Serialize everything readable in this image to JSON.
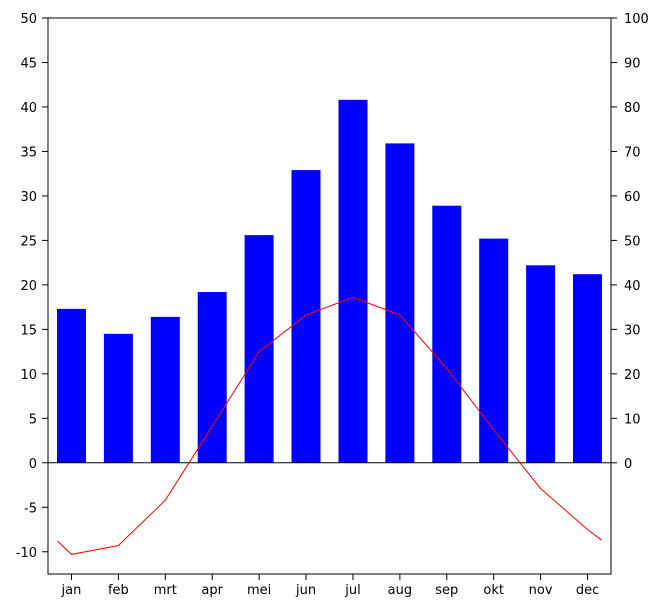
{
  "chart_data": {
    "type": "bar+line",
    "title": "",
    "categories": [
      "jan",
      "feb",
      "mrt",
      "apr",
      "mei",
      "jun",
      "jul",
      "aug",
      "sep",
      "okt",
      "nov",
      "dec"
    ],
    "series": [
      {
        "type": "bar",
        "axis": "right",
        "color": "#0000ff",
        "values": [
          34.6,
          29.0,
          32.8,
          38.4,
          51.2,
          65.8,
          81.6,
          71.8,
          57.8,
          50.4,
          44.4,
          42.4
        ]
      },
      {
        "type": "line",
        "axis": "left",
        "color": "#ff0000",
        "x": [
          -0.3,
          0,
          1,
          2,
          3,
          4,
          5,
          6,
          7,
          8,
          9,
          10,
          11,
          11.3
        ],
        "values": [
          -8.8,
          -10.3,
          -9.3,
          -4.2,
          4.1,
          12.5,
          16.6,
          18.6,
          16.6,
          10.6,
          3.7,
          -2.9,
          -7.5,
          -8.7
        ]
      }
    ],
    "left_axis": {
      "ylim": [
        -12.5,
        50
      ],
      "ticks": [
        "50",
        "45",
        "40",
        "35",
        "30",
        "25",
        "20",
        "15",
        "10",
        "5",
        "0",
        "-5",
        "-10"
      ]
    },
    "right_axis": {
      "ylim": [
        -25,
        100
      ],
      "ticks": [
        "100",
        "90",
        "80",
        "70",
        "60",
        "50",
        "40",
        "30",
        "20",
        "10",
        "0"
      ]
    },
    "xlabel": "",
    "ylabel": "",
    "grid": false,
    "legend": "none"
  }
}
